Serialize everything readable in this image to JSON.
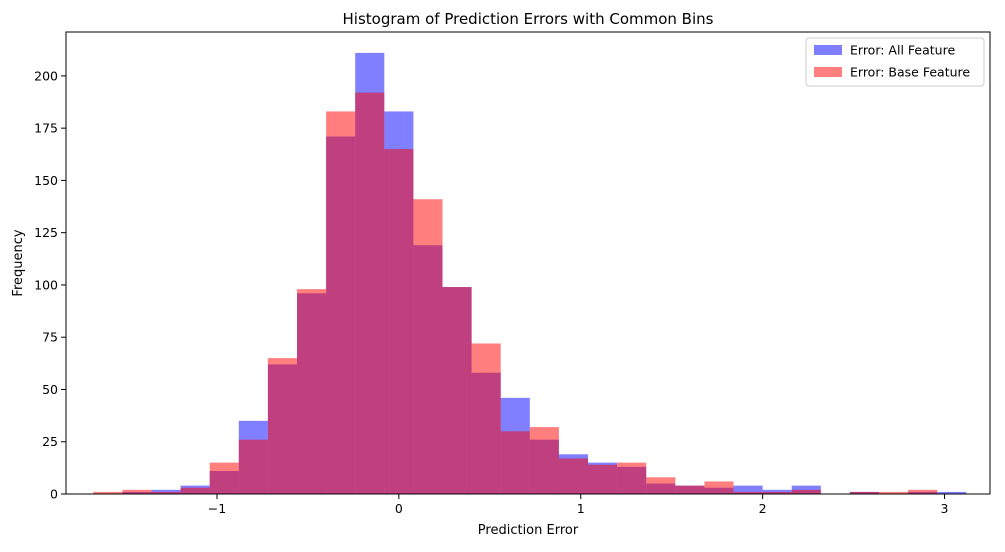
{
  "chart_data": {
    "type": "bar",
    "title": "Histogram of Prediction Errors with Common Bins",
    "xlabel": "Prediction Error",
    "ylabel": "Frequency",
    "xlim": [
      -1.83,
      3.25
    ],
    "ylim": [
      0,
      221
    ],
    "xticks": [
      -1,
      0,
      1,
      2,
      3
    ],
    "xtick_labels": [
      "−1",
      "0",
      "1",
      "2",
      "3"
    ],
    "yticks": [
      0,
      25,
      50,
      75,
      100,
      125,
      150,
      175,
      200
    ],
    "grid": false,
    "legend_position": "top-right",
    "bin_edges": [
      -1.68,
      -1.52,
      -1.36,
      -1.2,
      -1.04,
      -0.88,
      -0.72,
      -0.56,
      -0.4,
      -0.24,
      -0.08,
      0.08,
      0.24,
      0.4,
      0.56,
      0.72,
      0.88,
      1.04,
      1.2,
      1.36,
      1.52,
      1.68,
      1.84,
      2.0,
      2.16,
      2.32,
      2.48,
      2.64,
      2.8,
      2.96,
      3.12
    ],
    "series": [
      {
        "name": "Error: All Feature",
        "color": "#0000ff",
        "alpha": 0.5,
        "values": [
          0,
          1,
          2,
          4,
          11,
          35,
          62,
          96,
          171,
          211,
          183,
          119,
          99,
          58,
          46,
          26,
          19,
          15,
          13,
          5,
          4,
          3,
          4,
          2,
          4,
          0,
          1,
          0,
          1,
          1
        ]
      },
      {
        "name": "Error: Base Feature",
        "color": "#ff0000",
        "alpha": 0.5,
        "values": [
          1,
          2,
          1,
          3,
          15,
          26,
          65,
          98,
          183,
          192,
          165,
          141,
          99,
          72,
          30,
          32,
          17,
          14,
          15,
          8,
          4,
          6,
          1,
          1,
          2,
          0,
          1,
          1,
          2,
          0
        ]
      }
    ]
  }
}
